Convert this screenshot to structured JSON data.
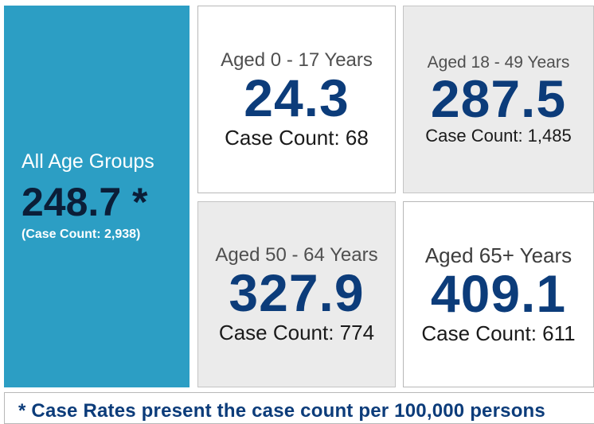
{
  "all_ages": {
    "label": "All Age Groups",
    "value": "248.7 *",
    "case_count": "(Case Count: 2,938)"
  },
  "age_groups": [
    {
      "label": "Aged 0 - 17 Years",
      "value": "24.3",
      "case_count": "Case Count: 68"
    },
    {
      "label": "Aged 18 - 49 Years",
      "value": "287.5",
      "case_count": "Case Count: 1,485"
    },
    {
      "label": "Aged 50 - 64 Years",
      "value": "327.9",
      "case_count": "Case Count: 774"
    },
    {
      "label": "Aged 65+ Years",
      "value": "409.1",
      "case_count": "Case Count: 611"
    }
  ],
  "footnote": "* Case Rates present the case count per 100,000 persons",
  "colors": {
    "highlight_tile": "#2c9ec4",
    "rate_value": "#0c3c7a",
    "grey_tile": "#ebebeb"
  }
}
